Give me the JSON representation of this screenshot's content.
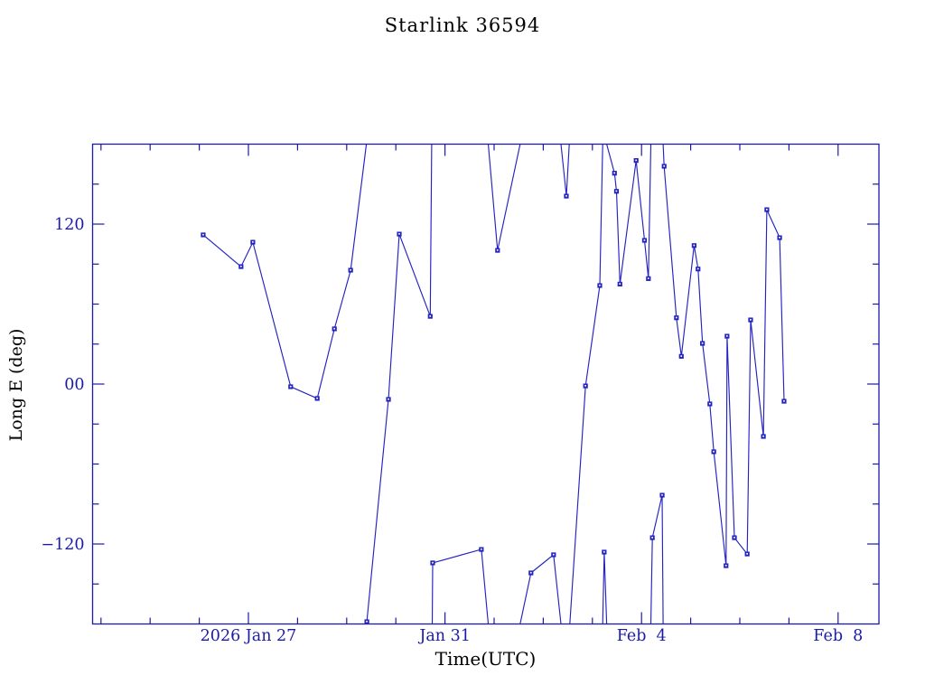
{
  "title": "Starlink 36594",
  "colors": {
    "background": "#ffffff",
    "text": "#1b1ba8",
    "axis": "#1b1ba8",
    "series": "#2323c0"
  },
  "chart_data": {
    "type": "line",
    "title": "Starlink 36594",
    "xlabel": "Time(UTC)",
    "ylabel": "Long E (deg)",
    "legend": "none",
    "grid": false,
    "marker": "filled-square-with-white-center",
    "x_units": "days after 2026 Jan 27 00:00 UTC",
    "x_range_days": [
      -3.171,
      12.831
    ],
    "y_range_deg": [
      -180,
      180
    ],
    "x_minor_tick_step_days": 1,
    "y_minor_tick_step_deg": 30,
    "x_major_ticks": [
      {
        "t": 0,
        "label": "2026 Jan 27"
      },
      {
        "t": 4,
        "label": "Jan 31"
      },
      {
        "t": 8,
        "label": "Feb  4"
      },
      {
        "t": 12,
        "label": "Feb  8"
      }
    ],
    "y_major_ticks": [
      {
        "deg": 120,
        "label": "120"
      },
      {
        "deg": 0,
        "label": "00"
      },
      {
        "deg": -120,
        "label": "−120"
      }
    ],
    "segment_point_format": "[days_after_2026_Jan_27_UTC, longitude_deg_east, has_marker(1=data sample,0=±180 wrap clip point)]",
    "segments": [
      [
        [
          -0.92,
          111.9,
          1
        ],
        [
          -0.15,
          88.1,
          1
        ],
        [
          0.09,
          106.4,
          1
        ],
        [
          0.86,
          -2.0,
          1
        ],
        [
          1.4,
          -10.8,
          1
        ],
        [
          1.75,
          41.4,
          1
        ],
        [
          2.08,
          85.4,
          1
        ],
        [
          2.4,
          180,
          0
        ]
      ],
      [
        [
          2.4,
          -180,
          0
        ],
        [
          2.41,
          -178.3,
          1
        ],
        [
          2.85,
          -11.5,
          1
        ],
        [
          3.07,
          112.5,
          1
        ],
        [
          3.7,
          50.8,
          1
        ],
        [
          3.73,
          180,
          0
        ]
      ],
      [
        [
          3.74,
          -180,
          0
        ],
        [
          3.75,
          -134.2,
          1
        ],
        [
          4.74,
          -124.1,
          1
        ],
        [
          4.88,
          -180,
          0
        ]
      ],
      [
        [
          4.88,
          180,
          0
        ],
        [
          5.07,
          100.3,
          1
        ],
        [
          5.53,
          180,
          0
        ]
      ],
      [
        [
          5.53,
          -180,
          0
        ],
        [
          5.75,
          -141.7,
          1
        ],
        [
          6.21,
          -128.1,
          1
        ],
        [
          6.36,
          -180,
          0
        ]
      ],
      [
        [
          6.36,
          180,
          0
        ],
        [
          6.47,
          141.0,
          1
        ],
        [
          6.53,
          180,
          0
        ]
      ],
      [
        [
          6.54,
          -180,
          0
        ],
        [
          6.86,
          -1.4,
          1
        ],
        [
          7.15,
          73.9,
          1
        ],
        [
          7.21,
          180,
          0
        ]
      ],
      [
        [
          7.21,
          -180,
          0
        ],
        [
          7.24,
          -126.1,
          1
        ],
        [
          7.29,
          -180,
          0
        ]
      ],
      [
        [
          7.29,
          180,
          0
        ],
        [
          7.45,
          158.2,
          1
        ],
        [
          7.49,
          144.6,
          1
        ],
        [
          7.56,
          75.0,
          1
        ],
        [
          7.89,
          167.7,
          1
        ],
        [
          8.06,
          107.8,
          1
        ],
        [
          8.14,
          79.1,
          1
        ],
        [
          8.19,
          180,
          0
        ]
      ],
      [
        [
          8.19,
          -180,
          0
        ],
        [
          8.22,
          -115.3,
          1
        ],
        [
          8.42,
          -83.4,
          1
        ],
        [
          8.44,
          -180,
          0
        ]
      ],
      [
        [
          8.44,
          180,
          0
        ],
        [
          8.46,
          163.4,
          1
        ],
        [
          8.71,
          49.7,
          1
        ],
        [
          8.81,
          20.8,
          1
        ],
        [
          9.07,
          103.9,
          1
        ],
        [
          9.15,
          86.3,
          1
        ],
        [
          9.24,
          30.5,
          1
        ],
        [
          9.39,
          -14.9,
          1
        ],
        [
          9.47,
          -50.8,
          1
        ],
        [
          9.72,
          -136.3,
          1
        ],
        [
          9.74,
          35.9,
          1
        ],
        [
          9.89,
          -115.3,
          1
        ],
        [
          10.15,
          -127.5,
          1
        ],
        [
          10.22,
          48.1,
          1
        ],
        [
          10.48,
          -39.3,
          1
        ],
        [
          10.55,
          130.8,
          1
        ],
        [
          10.81,
          109.8,
          1
        ],
        [
          10.9,
          -12.9,
          1
        ]
      ]
    ]
  }
}
